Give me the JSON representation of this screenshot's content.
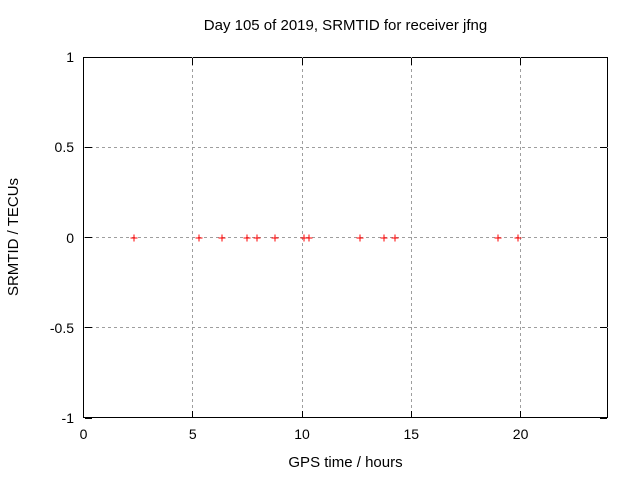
{
  "window": {
    "background": "#ffffff"
  },
  "colors": {
    "foreground": "#000000",
    "grid": "#9e9e9e",
    "marker": "#ff0000",
    "background": "#ffffff"
  },
  "chart_data": {
    "type": "scatter",
    "title": "Day 105 of 2019, SRMTID for receiver jfng",
    "xlabel": "GPS time / hours",
    "ylabel": "SRMTID / TECUs",
    "xlim": [
      0,
      24
    ],
    "ylim": [
      -1,
      1
    ],
    "xticks": [
      0,
      5,
      10,
      15,
      20
    ],
    "xticklabels": [
      "0",
      "5",
      "10",
      "15",
      "20"
    ],
    "yticks": [
      1,
      0.5,
      0,
      -0.5,
      -1
    ],
    "yticklabels": [
      "1",
      "0.5",
      "0",
      "-0.5",
      "-1"
    ],
    "grid": true,
    "grid_style": "dashed",
    "legend": "none",
    "marker": "plus",
    "series": [
      {
        "name": "SRMTID",
        "color": "#ff0000",
        "points": [
          {
            "x": 2.29,
            "y": 0
          },
          {
            "x": 2.33,
            "y": 0
          },
          {
            "x": 5.28,
            "y": 0
          },
          {
            "x": 6.33,
            "y": 0
          },
          {
            "x": 7.5,
            "y": 0
          },
          {
            "x": 7.92,
            "y": 0
          },
          {
            "x": 8.74,
            "y": 0
          },
          {
            "x": 10.07,
            "y": 0
          },
          {
            "x": 10.34,
            "y": 0
          },
          {
            "x": 12.67,
            "y": 0
          },
          {
            "x": 13.77,
            "y": 0
          },
          {
            "x": 14.27,
            "y": 0
          },
          {
            "x": 18.97,
            "y": 0
          },
          {
            "x": 19.88,
            "y": 0
          }
        ]
      }
    ]
  }
}
